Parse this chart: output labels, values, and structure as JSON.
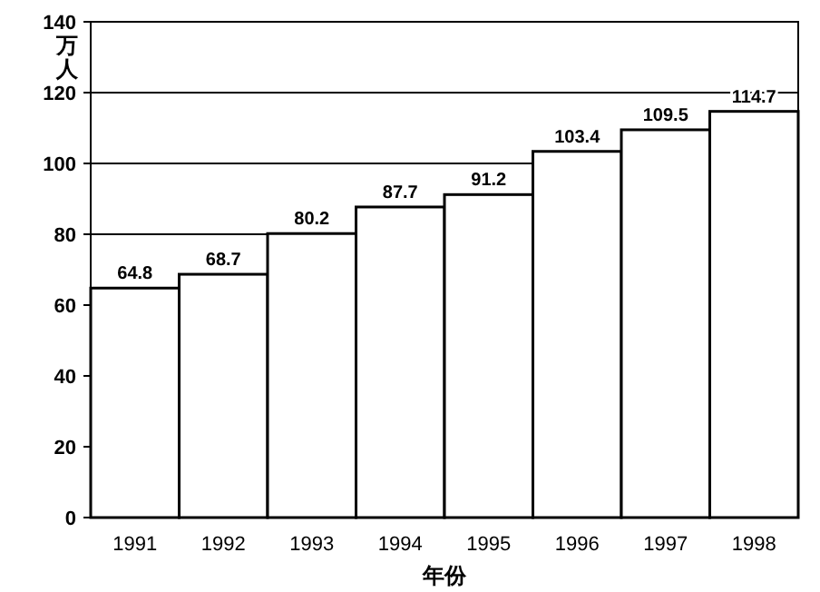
{
  "chart_data": {
    "type": "bar",
    "xlabel": "年份",
    "ylabel": "万人",
    "categories": [
      "1991",
      "1992",
      "1993",
      "1994",
      "1995",
      "1996",
      "1997",
      "1998"
    ],
    "values": [
      64.8,
      68.7,
      80.2,
      87.7,
      91.2,
      103.4,
      109.5,
      114.7
    ],
    "color": "#ffffff",
    "ylim": [
      0,
      140
    ],
    "yticks": [
      0,
      20,
      40,
      60,
      80,
      100,
      120,
      140
    ],
    "grid": "y",
    "data_labels": true
  }
}
